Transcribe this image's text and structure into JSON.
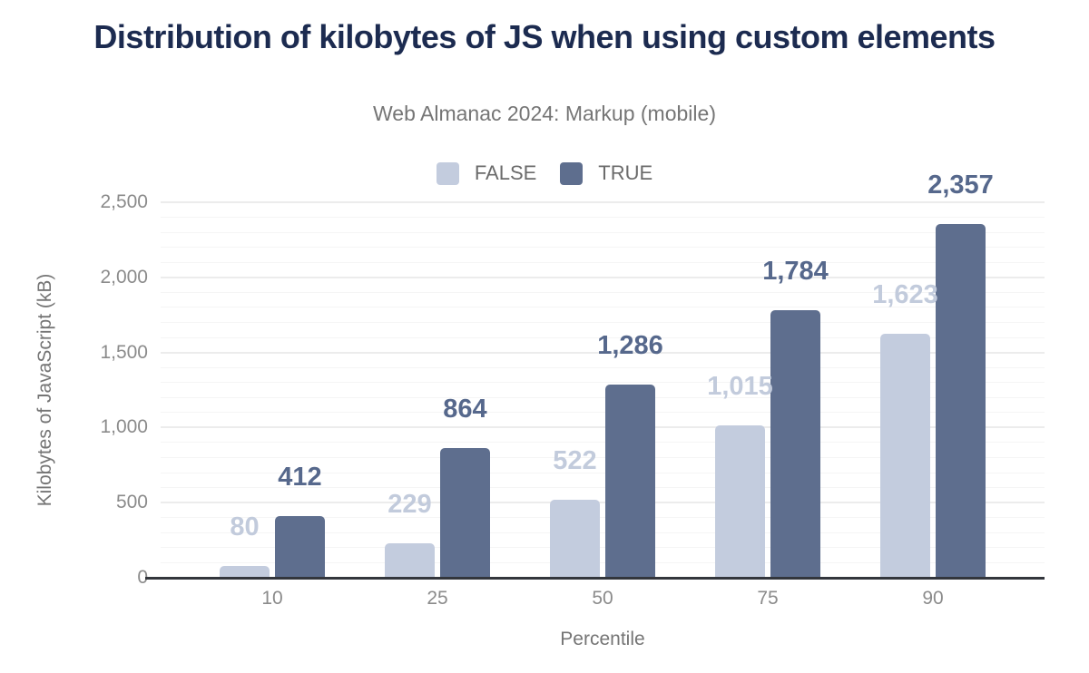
{
  "chart_data": {
    "type": "bar",
    "title": "Distribution of kilobytes of JS when using custom elements",
    "subtitle": "Web Almanac 2024: Markup (mobile)",
    "xlabel": "Percentile",
    "ylabel": "Kilobytes of JavaScript (kB)",
    "categories": [
      "10",
      "25",
      "50",
      "75",
      "90"
    ],
    "series": [
      {
        "name": "FALSE",
        "color": "#c3ccde",
        "label_color": "#c2cbdc",
        "values": [
          80,
          229,
          522,
          1015,
          1623
        ],
        "labels": [
          "80",
          "229",
          "522",
          "1,015",
          "1,623"
        ]
      },
      {
        "name": "TRUE",
        "color": "#5e6e8e",
        "label_color": "#56688c",
        "values": [
          412,
          864,
          1286,
          1784,
          2357
        ],
        "labels": [
          "412",
          "864",
          "1,286",
          "1,784",
          "2,357"
        ]
      }
    ],
    "ylim": [
      0,
      2500
    ],
    "yticks": [
      {
        "value": 0,
        "label": "0"
      },
      {
        "value": 500,
        "label": "500"
      },
      {
        "value": 1000,
        "label": "1,000"
      },
      {
        "value": 1500,
        "label": "1,500"
      },
      {
        "value": 2000,
        "label": "2,000"
      },
      {
        "value": 2500,
        "label": "2,500"
      }
    ],
    "grid": {
      "minor_step": 100,
      "major_step": 500,
      "minor_color": "#f5f5f5",
      "major_color": "#ececec"
    },
    "legend_position": "top-center",
    "colors": {
      "title": "#1c2b50",
      "subtitle": "#757575",
      "tick_label": "#8b8b8b",
      "axis_title": "#757575",
      "legend_label": "#6b6b6b",
      "axis_line": "#33363c",
      "background": "#ffffff"
    }
  }
}
